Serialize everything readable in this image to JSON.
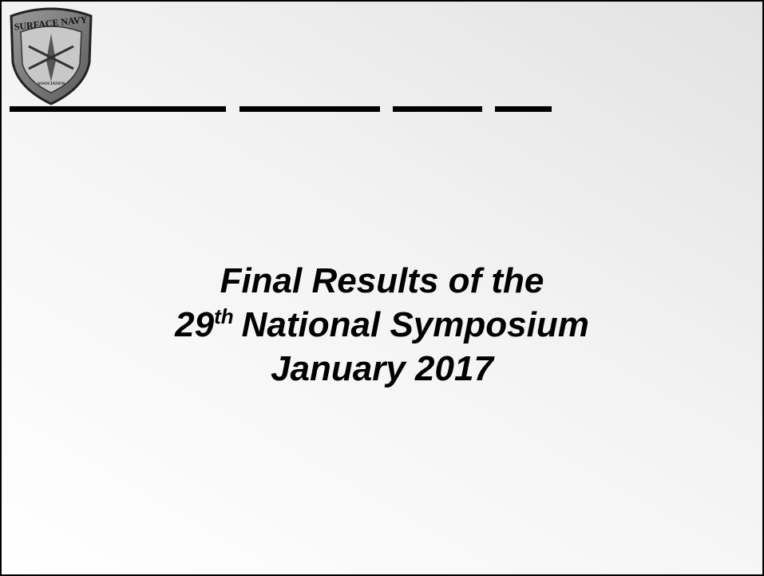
{
  "logo": {
    "top_text": "SURFACE NAVY",
    "bottom_text": "ASSOCIATION"
  },
  "title": {
    "line1": "Final Results of the",
    "line2_number": "29",
    "line2_suffix": "th",
    "line2_rest": "National Symposium",
    "line3": "January 2017"
  }
}
